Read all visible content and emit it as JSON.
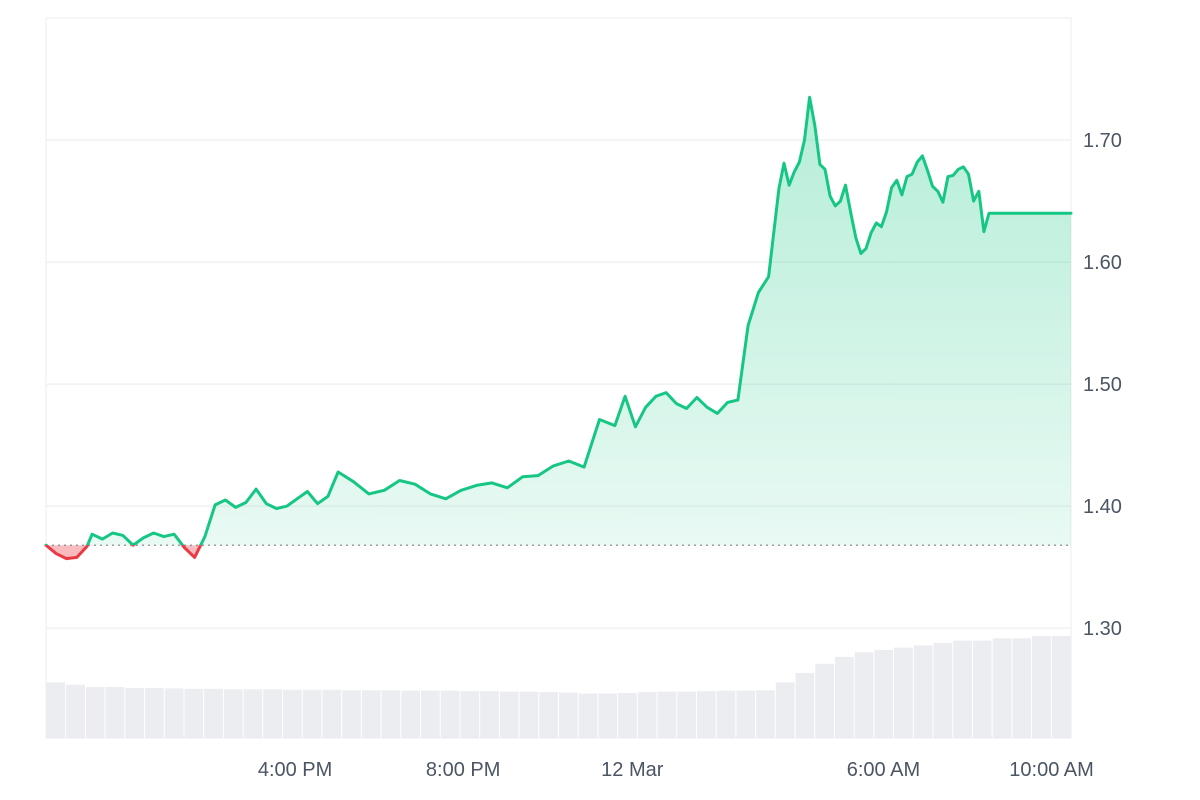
{
  "chart_data": {
    "type": "area",
    "title": "",
    "xlabel": "",
    "ylabel": "",
    "baseline": 1.368,
    "ylim": [
      1.21,
      1.8
    ],
    "xlim": [
      0,
      1
    ],
    "y_ticks": [
      {
        "value": 1.3,
        "label": "1.30"
      },
      {
        "value": 1.4,
        "label": "1.40"
      },
      {
        "value": 1.5,
        "label": "1.50"
      },
      {
        "value": 1.6,
        "label": "1.60"
      },
      {
        "value": 1.7,
        "label": "1.70"
      }
    ],
    "x_ticks": [
      {
        "value": 0.243,
        "label": "4:00 PM"
      },
      {
        "value": 0.407,
        "label": "8:00 PM"
      },
      {
        "value": 0.572,
        "label": "12 Mar"
      },
      {
        "value": 0.817,
        "label": "6:00 AM"
      },
      {
        "value": 0.981,
        "label": "10:00 AM"
      }
    ],
    "series": [
      {
        "x": [
          0.0,
          0.01,
          0.02,
          0.03,
          0.04,
          0.045,
          0.055,
          0.065,
          0.075,
          0.085,
          0.095,
          0.105,
          0.115,
          0.125,
          0.135,
          0.145,
          0.155,
          0.165,
          0.175,
          0.185,
          0.195,
          0.205,
          0.215,
          0.225,
          0.235,
          0.245,
          0.255,
          0.265,
          0.275,
          0.285,
          0.3,
          0.315,
          0.33,
          0.345,
          0.36,
          0.375,
          0.39,
          0.405,
          0.42,
          0.435,
          0.45,
          0.465,
          0.48,
          0.495,
          0.51,
          0.525,
          0.54,
          0.555,
          0.565,
          0.575,
          0.585,
          0.595,
          0.605,
          0.615,
          0.625,
          0.635,
          0.645,
          0.655,
          0.665,
          0.675,
          0.685,
          0.695,
          0.705,
          0.715,
          0.72,
          0.725,
          0.73,
          0.735,
          0.74,
          0.745,
          0.75,
          0.755,
          0.76,
          0.765,
          0.77,
          0.775,
          0.78,
          0.785,
          0.79,
          0.795,
          0.8,
          0.805,
          0.81,
          0.815,
          0.82,
          0.825,
          0.83,
          0.835,
          0.84,
          0.845,
          0.85,
          0.855,
          0.86,
          0.865,
          0.87,
          0.875,
          0.88,
          0.885,
          0.89,
          0.895,
          0.9,
          0.905,
          0.91,
          0.915,
          0.92,
          0.925,
          0.93,
          0.935,
          0.94,
          0.945,
          0.95,
          0.955,
          0.96,
          0.965,
          0.97,
          0.975,
          0.98,
          0.985,
          0.99,
          0.995,
          1.0
        ],
        "values": [
          1.368,
          1.361,
          1.357,
          1.358,
          1.367,
          1.377,
          1.373,
          1.378,
          1.376,
          1.368,
          1.374,
          1.378,
          1.375,
          1.377,
          1.366,
          1.358,
          1.375,
          1.401,
          1.405,
          1.399,
          1.403,
          1.414,
          1.402,
          1.398,
          1.4,
          1.406,
          1.412,
          1.402,
          1.408,
          1.428,
          1.42,
          1.41,
          1.413,
          1.421,
          1.418,
          1.41,
          1.406,
          1.413,
          1.417,
          1.419,
          1.415,
          1.424,
          1.425,
          1.433,
          1.437,
          1.432,
          1.471,
          1.466,
          1.49,
          1.465,
          1.481,
          1.49,
          1.493,
          1.484,
          1.48,
          1.489,
          1.481,
          1.476,
          1.485,
          1.487,
          1.548,
          1.575,
          1.588,
          1.66,
          1.681,
          1.663,
          1.674,
          1.682,
          1.7,
          1.735,
          1.712,
          1.68,
          1.676,
          1.654,
          1.646,
          1.65,
          1.663,
          1.641,
          1.62,
          1.607,
          1.611,
          1.624,
          1.632,
          1.629,
          1.641,
          1.661,
          1.667,
          1.655,
          1.67,
          1.672,
          1.682,
          1.687,
          1.675,
          1.662,
          1.658,
          1.649,
          1.67,
          1.671,
          1.676,
          1.678,
          1.672,
          1.65,
          1.658,
          1.625,
          1.64,
          1.64,
          1.64,
          1.64,
          1.64,
          1.64,
          1.64,
          1.64,
          1.64,
          1.64,
          1.64,
          1.64,
          1.64,
          1.64,
          1.64,
          1.64,
          1.64
        ]
      }
    ],
    "volume": {
      "values": [
        0.12,
        0.115,
        0.11,
        0.11,
        0.108,
        0.108,
        0.107,
        0.106,
        0.106,
        0.105,
        0.105,
        0.105,
        0.104,
        0.104,
        0.104,
        0.103,
        0.103,
        0.103,
        0.102,
        0.102,
        0.102,
        0.101,
        0.101,
        0.1,
        0.1,
        0.099,
        0.098,
        0.096,
        0.096,
        0.097,
        0.099,
        0.1,
        0.1,
        0.101,
        0.102,
        0.102,
        0.103,
        0.12,
        0.14,
        0.16,
        0.175,
        0.185,
        0.19,
        0.195,
        0.2,
        0.205,
        0.21,
        0.21,
        0.215,
        0.215,
        0.22,
        0.22
      ]
    },
    "colors": {
      "up_line": "#16c784",
      "down_line": "#ea3943",
      "up_fill": "#16c784",
      "down_fill": "#ea3943",
      "volume_bar": "#e5e7eb",
      "grid": "#e8eaed",
      "axis_text": "#4b5563",
      "baseline": "#7a7f87"
    },
    "grid": true,
    "legend": "none"
  }
}
